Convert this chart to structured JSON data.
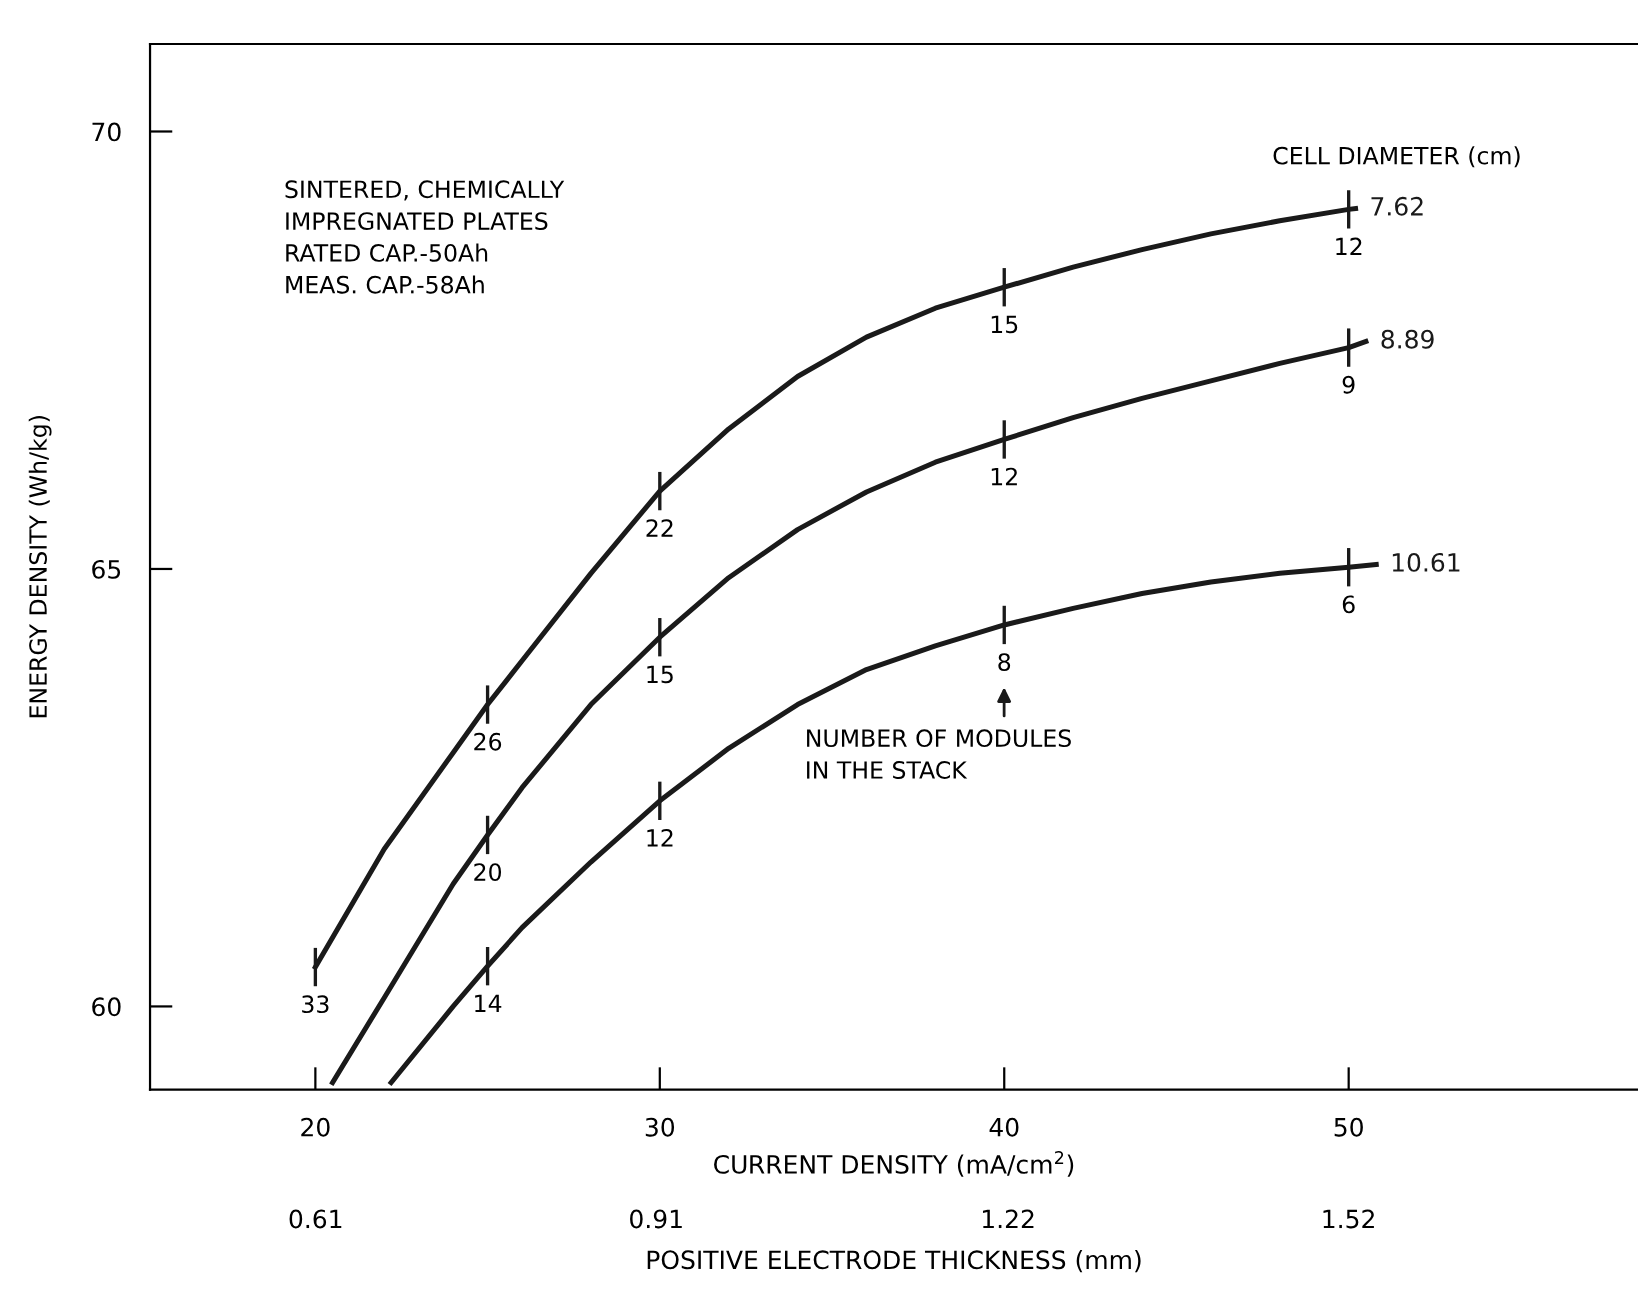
{
  "chart_data": {
    "type": "line",
    "xlabel": "CURRENT DENSITY (mA/cm$^{2}$)",
    "ylabel": "ENERGY DENSITY (Wh/kg)",
    "x2label": "POSITIVE ELECTRODE THICKNESS (mm)",
    "legend_title": "CELL DIAMETER (cm)",
    "xlim": [
      15.2,
      58.4
    ],
    "xticks": [
      20,
      30,
      40,
      50
    ],
    "ylim": [
      59.05,
      71
    ],
    "yticks": [
      60,
      65,
      70
    ],
    "x2lim": [
      0.464,
      1.775
    ],
    "x2ticks": [
      0.61,
      0.91,
      1.22,
      1.52
    ],
    "series": [
      {
        "name": "7.62",
        "color": "#1a1a1a",
        "x": [
          20,
          22,
          24,
          25,
          26,
          28,
          30,
          32,
          34,
          36,
          38,
          40,
          42,
          44,
          46,
          48,
          50,
          50.2
        ],
        "values": [
          60.45,
          61.8,
          62.9,
          63.45,
          63.95,
          64.95,
          65.89,
          66.6,
          67.2,
          67.65,
          67.98,
          68.22,
          68.45,
          68.65,
          68.83,
          68.98,
          69.11,
          69.12
        ]
      },
      {
        "name": "8.89",
        "color": "#1a1a1a",
        "x": [
          20.5,
          22,
          24,
          25,
          26,
          28,
          30,
          32,
          34,
          36,
          38,
          40,
          42,
          44,
          46,
          48,
          50,
          50.5
        ],
        "values": [
          59.13,
          60.1,
          61.4,
          61.96,
          62.5,
          63.45,
          64.22,
          64.9,
          65.45,
          65.88,
          66.22,
          66.48,
          66.73,
          66.95,
          67.15,
          67.35,
          67.53,
          67.6
        ]
      },
      {
        "name": "10.61",
        "color": "#1a1a1a",
        "x": [
          22.2,
          24,
          25,
          26,
          28,
          30,
          32,
          34,
          36,
          38,
          40,
          42,
          44,
          46,
          48,
          50,
          50.8
        ],
        "values": [
          59.13,
          60.0,
          60.46,
          60.9,
          61.65,
          62.35,
          62.95,
          63.45,
          63.85,
          64.12,
          64.36,
          64.55,
          64.72,
          64.85,
          64.95,
          65.02,
          65.05
        ]
      }
    ],
    "annotations": [
      "SINTERED, CHEMICALLY\nIMPREGNATED PLATES\nRATED CAP.-50Ah\nMEAS. CAP.-58Ah",
      "NUMBER OF MODULES\nIN THE STACK",
      {
        "text": "33",
        "x": 20,
        "y": 60.45
      },
      {
        "text": "26",
        "x": 25,
        "y": 63.45
      },
      {
        "text": "22",
        "x": 30,
        "y": 65.89
      },
      {
        "text": "15",
        "x": 40,
        "y": 68.22
      },
      {
        "text": "12",
        "x": 50,
        "y": 69.11
      },
      {
        "text": "20",
        "x": 25,
        "y": 61.96
      },
      {
        "text": "15",
        "x": 30,
        "y": 64.22
      },
      {
        "text": "12",
        "x": 40,
        "y": 66.48
      },
      {
        "text": "9",
        "x": 50,
        "y": 67.53
      },
      {
        "text": "14",
        "x": 25,
        "y": 60.46
      },
      {
        "text": "12",
        "x": 30,
        "y": 62.35
      },
      {
        "text": "8",
        "x": 40,
        "y": 64.36
      },
      {
        "text": "6",
        "x": 50,
        "y": 65.02
      }
    ],
    "grid": false,
    "legend": "right",
    "line_style": "solid"
  }
}
